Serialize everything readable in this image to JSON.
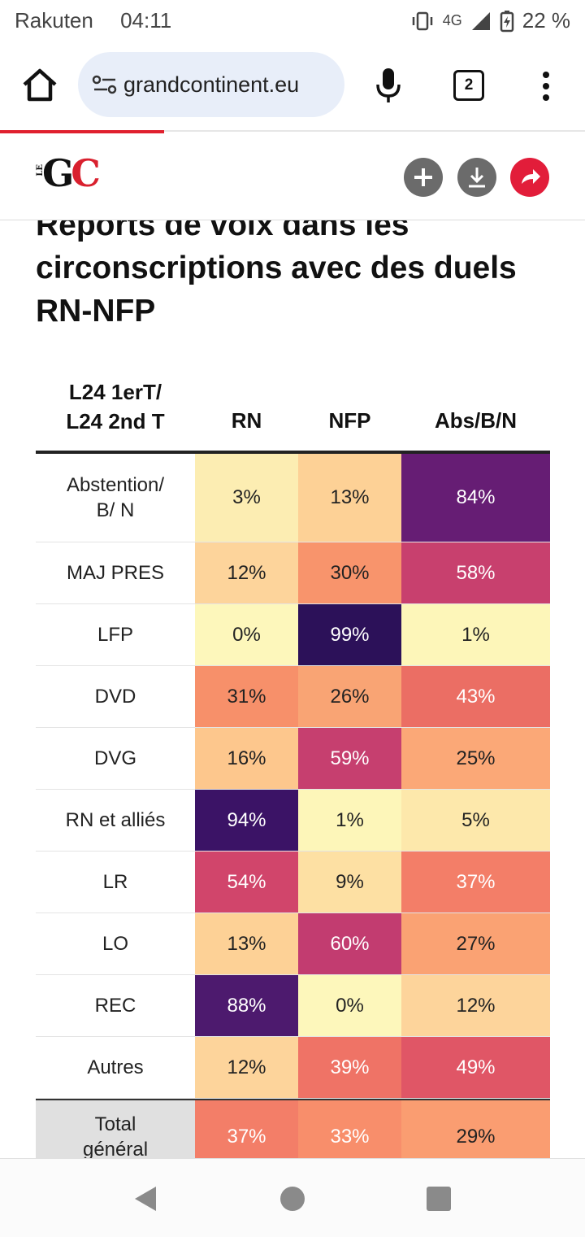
{
  "status": {
    "carrier": "Rakuten",
    "time": "04:11",
    "network": "4G",
    "battery": "22 %"
  },
  "browser": {
    "url": "grandcontinent.eu",
    "tab_count": "2",
    "progress": 0.28
  },
  "site": {
    "logo_small": "LE",
    "logo_main": "G",
    "logo_accent": "C"
  },
  "article": {
    "title": "Reports de voix dans les circonscriptions avec des duels RN-NFP"
  },
  "table": {
    "header": {
      "row_header": "L24 1erT/\nL24 2nd T",
      "c1": "RN",
      "c2": "NFP",
      "c3": "Abs/B/N"
    },
    "rows": [
      {
        "label": "Abstention/\nB/ N",
        "c1": "3%",
        "c2": "13%",
        "c3": "84%",
        "bg": [
          "#fcedb2",
          "#fdd196",
          "#661d74"
        ],
        "fg": [
          "#222",
          "#222",
          "#fff"
        ]
      },
      {
        "label": "MAJ PRES",
        "c1": "12%",
        "c2": "30%",
        "c3": "58%",
        "bg": [
          "#fdd49b",
          "#f8946c",
          "#c8406e"
        ],
        "fg": [
          "#222",
          "#222",
          "#fff"
        ]
      },
      {
        "label": "LFP",
        "c1": "0%",
        "c2": "99%",
        "c3": "1%",
        "bg": [
          "#fdf7bb",
          "#2c1159",
          "#fdf6b9"
        ],
        "fg": [
          "#222",
          "#fff",
          "#222"
        ]
      },
      {
        "label": "DVD",
        "c1": "31%",
        "c2": "26%",
        "c3": "43%",
        "bg": [
          "#f7906a",
          "#f9a474",
          "#eb6e64"
        ],
        "fg": [
          "#222",
          "#222",
          "#fff"
        ]
      },
      {
        "label": "DVG",
        "c1": "16%",
        "c2": "59%",
        "c3": "25%",
        "bg": [
          "#fdc78d",
          "#c63f6f",
          "#fba877"
        ],
        "fg": [
          "#222",
          "#fff",
          "#222"
        ]
      },
      {
        "label": "RN et alliés",
        "c1": "94%",
        "c2": "1%",
        "c3": "5%",
        "bg": [
          "#3b1366",
          "#fdf6b9",
          "#fde8ab"
        ],
        "fg": [
          "#fff",
          "#222",
          "#222"
        ]
      },
      {
        "label": "LR",
        "c1": "54%",
        "c2": "9%",
        "c3": "37%",
        "bg": [
          "#d1456b",
          "#fde0a3",
          "#f37e68"
        ],
        "fg": [
          "#fff",
          "#222",
          "#fff"
        ]
      },
      {
        "label": "LO",
        "c1": "13%",
        "c2": "60%",
        "c3": "27%",
        "bg": [
          "#fdd196",
          "#c23c70",
          "#faa273"
        ],
        "fg": [
          "#222",
          "#fff",
          "#222"
        ]
      },
      {
        "label": "REC",
        "c1": "88%",
        "c2": "0%",
        "c3": "12%",
        "bg": [
          "#4d1a6e",
          "#fdf7bb",
          "#fdd49b"
        ],
        "fg": [
          "#fff",
          "#222",
          "#222"
        ]
      },
      {
        "label": "Autres",
        "c1": "12%",
        "c2": "39%",
        "c3": "49%",
        "bg": [
          "#fdd49b",
          "#ef7366",
          "#e05666"
        ],
        "fg": [
          "#222",
          "#fff",
          "#fff"
        ]
      }
    ],
    "total": {
      "label": "Total\ngénéral",
      "c1": "37%",
      "c2": "33%",
      "c3": "29%",
      "bg": [
        "#f37e68",
        "#f88e6b",
        "#fa9d71"
      ],
      "fg": [
        "#fff",
        "#fff",
        "#222"
      ]
    }
  }
}
